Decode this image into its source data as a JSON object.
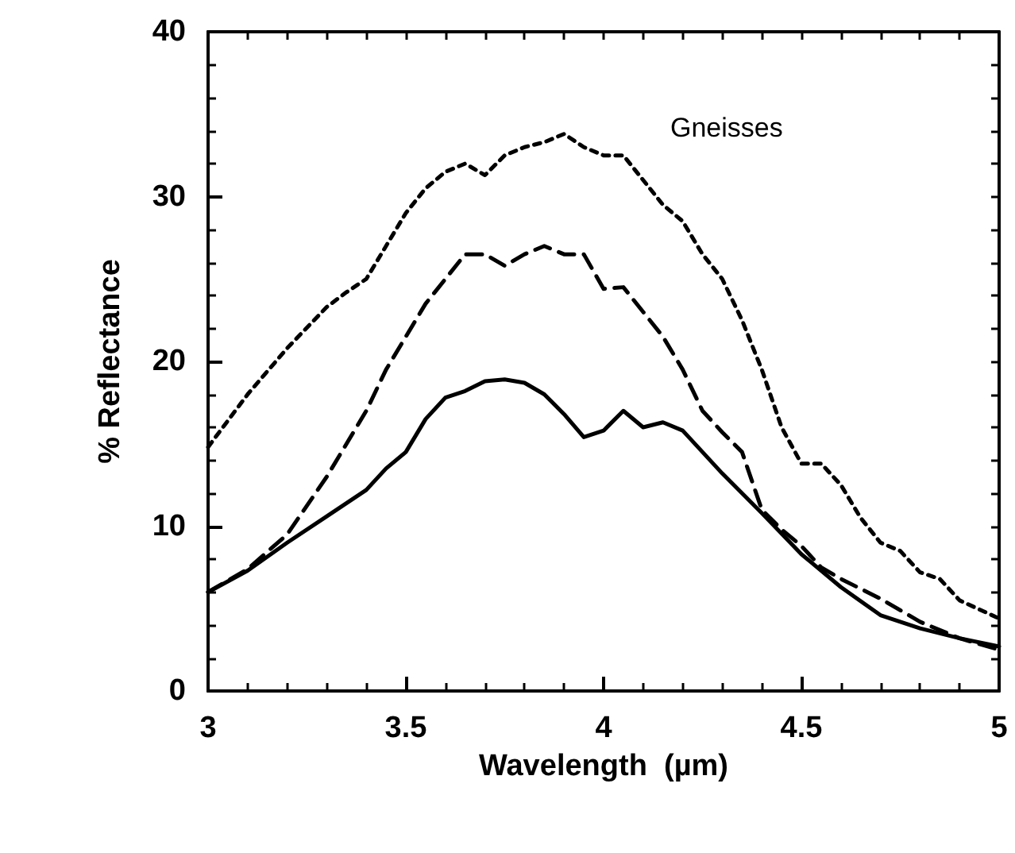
{
  "chart_data": {
    "type": "line",
    "xlabel": "Wavelength  (µm)",
    "ylabel": "% Reflectance",
    "annotations": [
      "Gneisses"
    ],
    "xlim": [
      3,
      5
    ],
    "xticks": [
      3,
      3.5,
      4,
      4.5,
      5
    ],
    "ylim": [
      0,
      40
    ],
    "yticks": [
      0,
      10,
      20,
      30,
      40
    ],
    "marker": "none",
    "series": [
      {
        "color": "#000000",
        "line_style": "solid",
        "x": [
          3.0,
          3.1,
          3.2,
          3.3,
          3.4,
          3.45,
          3.5,
          3.55,
          3.6,
          3.65,
          3.7,
          3.75,
          3.8,
          3.85,
          3.9,
          3.95,
          4.0,
          4.05,
          4.1,
          4.15,
          4.2,
          4.25,
          4.3,
          4.4,
          4.5,
          4.6,
          4.7,
          4.8,
          4.9,
          5.0
        ],
        "values": [
          6,
          7.3,
          9,
          10.6,
          12.2,
          13.5,
          14.5,
          16.5,
          17.8,
          18.2,
          18.8,
          18.9,
          18.7,
          18,
          16.8,
          15.4,
          15.8,
          17,
          16,
          16.3,
          15.8,
          14.5,
          13.2,
          10.8,
          8.3,
          6.3,
          4.6,
          3.8,
          3.2,
          2.7
        ]
      },
      {
        "color": "#000000",
        "line_style": "dashed",
        "x": [
          3.0,
          3.1,
          3.2,
          3.3,
          3.4,
          3.45,
          3.5,
          3.55,
          3.6,
          3.65,
          3.7,
          3.75,
          3.8,
          3.85,
          3.9,
          3.95,
          4.0,
          4.05,
          4.1,
          4.15,
          4.2,
          4.25,
          4.3,
          4.35,
          4.4,
          4.45,
          4.5,
          4.55,
          4.6,
          4.7,
          4.8,
          4.9,
          5.0
        ],
        "values": [
          6,
          7.4,
          9.5,
          13,
          17,
          19.5,
          21.5,
          23.5,
          25,
          26.5,
          26.5,
          25.8,
          26.5,
          27,
          26.5,
          26.5,
          24.4,
          24.5,
          23,
          21.5,
          19.5,
          17,
          15.7,
          14.5,
          11,
          9.8,
          8.8,
          7.5,
          6.8,
          5.6,
          4.2,
          3.2,
          2.5
        ]
      },
      {
        "color": "#000000",
        "line_style": "dotted",
        "x": [
          3.0,
          3.1,
          3.2,
          3.3,
          3.35,
          3.4,
          3.45,
          3.5,
          3.55,
          3.6,
          3.65,
          3.7,
          3.75,
          3.8,
          3.85,
          3.9,
          3.95,
          4.0,
          4.05,
          4.1,
          4.15,
          4.2,
          4.25,
          4.3,
          4.35,
          4.4,
          4.45,
          4.5,
          4.55,
          4.6,
          4.65,
          4.7,
          4.75,
          4.8,
          4.85,
          4.9,
          5.0
        ],
        "values": [
          14.8,
          18,
          20.8,
          23.3,
          24.2,
          25,
          27,
          29,
          30.5,
          31.5,
          32,
          31.3,
          32.5,
          33,
          33.3,
          33.8,
          33,
          32.5,
          32.5,
          31,
          29.5,
          28.5,
          26.5,
          25,
          22.5,
          19.5,
          16,
          13.8,
          13.8,
          12.5,
          10.5,
          9,
          8.5,
          7.2,
          6.8,
          5.5,
          4.4
        ]
      }
    ]
  }
}
